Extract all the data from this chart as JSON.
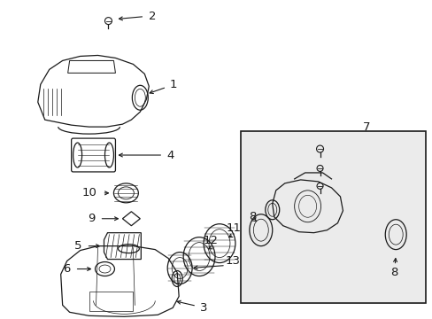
{
  "bg_color": "#ffffff",
  "line_color": "#1a1a1a",
  "box_fill": "#ebebeb",
  "fig_w": 4.89,
  "fig_h": 3.6,
  "dpi": 100
}
